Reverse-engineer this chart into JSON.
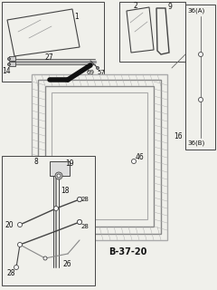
{
  "bg_color": "#f0f0eb",
  "line_color": "#444444",
  "label_color": "#111111",
  "diagram_label": "B-37-20",
  "fig_w": 2.4,
  "fig_h": 3.2,
  "dpi": 100
}
